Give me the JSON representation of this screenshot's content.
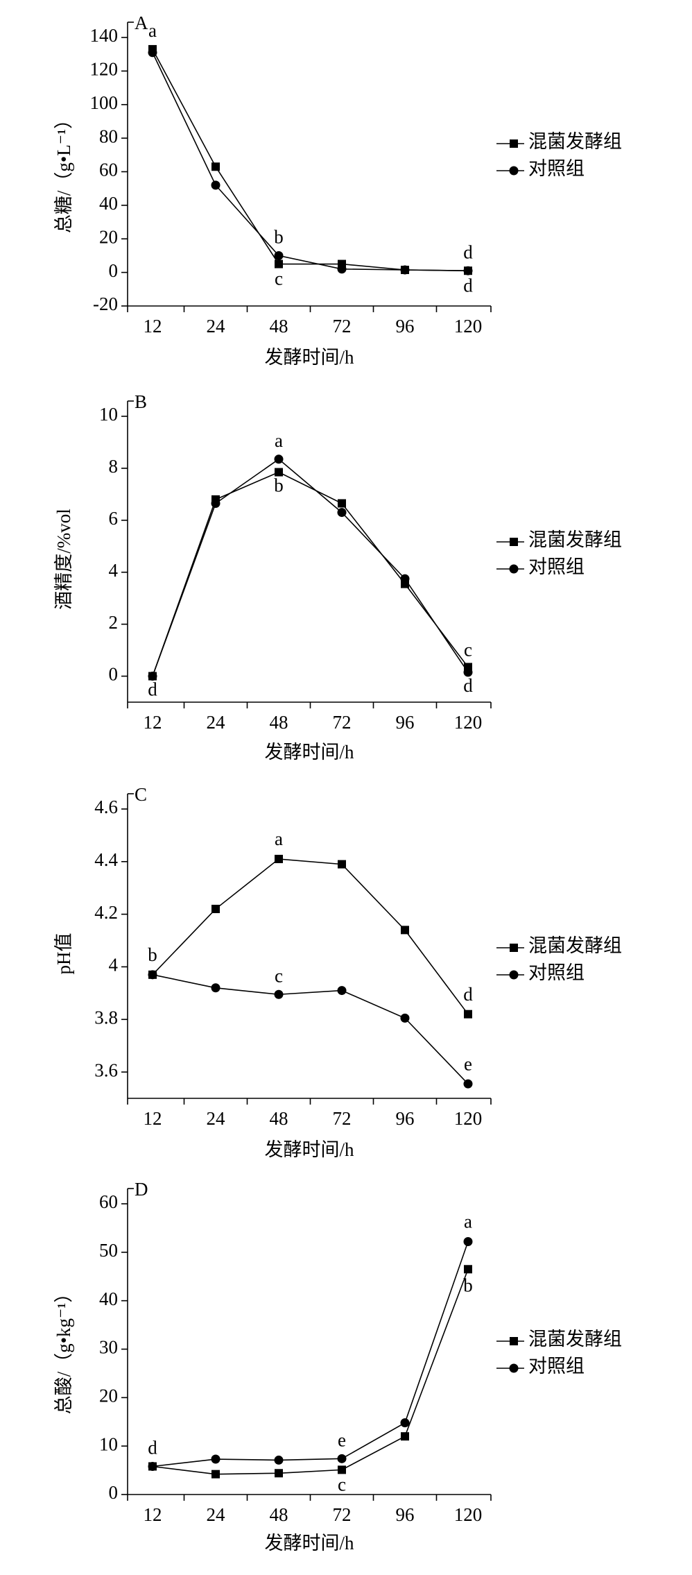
{
  "chart_data": [
    {
      "type": "line",
      "panel": "A",
      "y_label": "总糖/（g•L⁻¹）",
      "x_label": "发酵时间/h",
      "categories": [
        "12",
        "24",
        "48",
        "72",
        "96",
        "120"
      ],
      "series": [
        {
          "name": "混菌发酵组",
          "color": "#000000",
          "marker": "square",
          "values": [
            133,
            63,
            5,
            5,
            1.5,
            1
          ]
        },
        {
          "name": "对照组",
          "color": "#000000",
          "marker": "circle",
          "values": [
            131,
            52,
            10,
            2,
            1.5,
            1
          ]
        }
      ],
      "ylim": [
        -20,
        140
      ],
      "yticks": [
        -20,
        0,
        20,
        40,
        60,
        80,
        100,
        120,
        140
      ],
      "annotations": [
        "a",
        "b",
        "c",
        "d",
        "d"
      ]
    },
    {
      "type": "line",
      "panel": "B",
      "y_label": "酒精度/%vol",
      "x_label": "发酵时间/h",
      "categories": [
        "12",
        "24",
        "48",
        "72",
        "96",
        "120"
      ],
      "series": [
        {
          "name": "混菌发酵组",
          "color": "#000000",
          "marker": "square",
          "values": [
            0,
            6.8,
            7.85,
            6.65,
            3.55,
            0.35
          ]
        },
        {
          "name": "对照组",
          "color": "#000000",
          "marker": "circle",
          "values": [
            0,
            6.65,
            8.35,
            6.3,
            3.75,
            0.15
          ]
        }
      ],
      "ylim": [
        -1,
        10
      ],
      "yticks": [
        0,
        2,
        4,
        6,
        8,
        10
      ],
      "annotations": [
        "d",
        "a",
        "b",
        "c",
        "d"
      ]
    },
    {
      "type": "line",
      "panel": "C",
      "y_label": "pH值",
      "x_label": "发酵时间/h",
      "categories": [
        "12",
        "24",
        "48",
        "72",
        "96",
        "120"
      ],
      "series": [
        {
          "name": "混菌发酵组",
          "color": "#000000",
          "marker": "square",
          "values": [
            3.97,
            4.22,
            4.41,
            4.39,
            4.14,
            3.82
          ]
        },
        {
          "name": "对照组",
          "color": "#000000",
          "marker": "circle",
          "values": [
            3.97,
            3.92,
            3.895,
            3.91,
            3.805,
            3.555
          ]
        }
      ],
      "ylim": [
        3.5,
        4.6
      ],
      "yticks": [
        3.6,
        3.8,
        4.0,
        4.2,
        4.4,
        4.6
      ],
      "annotations": [
        "b",
        "a",
        "c",
        "d",
        "e"
      ]
    },
    {
      "type": "line",
      "panel": "D",
      "y_label": "总酸/（g•kg⁻¹）",
      "x_label": "发酵时间/h",
      "categories": [
        "12",
        "24",
        "48",
        "72",
        "96",
        "120"
      ],
      "series": [
        {
          "name": "混菌发酵组",
          "color": "#000000",
          "marker": "square",
          "values": [
            5.8,
            4.2,
            4.4,
            5.1,
            12,
            46.5
          ]
        },
        {
          "name": "对照组",
          "color": "#000000",
          "marker": "circle",
          "values": [
            5.8,
            7.3,
            7.1,
            7.4,
            14.8,
            52.2
          ]
        }
      ],
      "ylim": [
        0,
        60
      ],
      "yticks": [
        0,
        10,
        20,
        30,
        40,
        50,
        60
      ],
      "annotations": [
        "d",
        "e",
        "c",
        "a",
        "b"
      ]
    }
  ]
}
